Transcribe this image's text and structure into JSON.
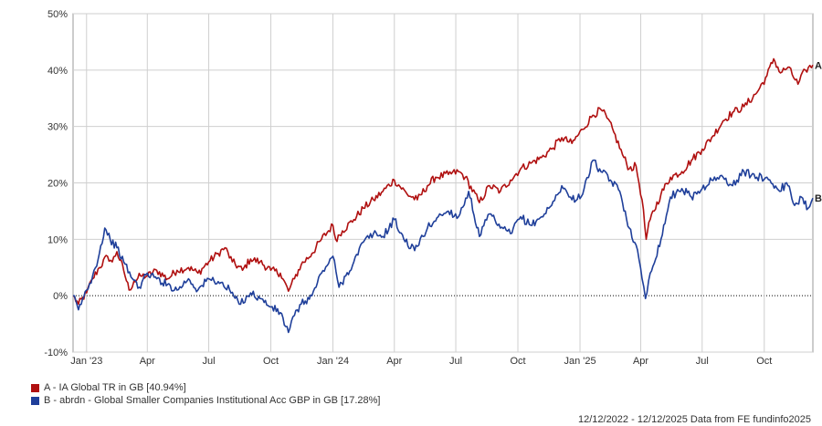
{
  "chart_data": {
    "type": "line",
    "xlim": [
      "2022-12-12",
      "2025-12-12"
    ],
    "ylim": [
      -10,
      50
    ],
    "y_ticks": [
      "-10%",
      "0%",
      "10%",
      "20%",
      "30%",
      "40%",
      "50%"
    ],
    "x_ticks": [
      {
        "label": "Jan '23",
        "date": "2023-01-01"
      },
      {
        "label": "Apr",
        "date": "2023-04-01"
      },
      {
        "label": "Jul",
        "date": "2023-07-01"
      },
      {
        "label": "Oct",
        "date": "2023-10-01"
      },
      {
        "label": "Jan '24",
        "date": "2024-01-01"
      },
      {
        "label": "Apr",
        "date": "2024-04-01"
      },
      {
        "label": "Jul",
        "date": "2024-07-01"
      },
      {
        "label": "Oct",
        "date": "2024-10-01"
      },
      {
        "label": "Jan '25",
        "date": "2025-01-01"
      },
      {
        "label": "Apr",
        "date": "2025-04-01"
      },
      {
        "label": "Jul",
        "date": "2025-07-01"
      },
      {
        "label": "Oct",
        "date": "2025-10-01"
      }
    ],
    "grid": true,
    "series": [
      {
        "name": "A - IA Global TR in GB [40.94%]",
        "end_label": "A",
        "color": "#b01010",
        "points": [
          [
            "2022-12-12",
            0.0
          ],
          [
            "2022-12-20",
            -1.5
          ],
          [
            "2023-01-01",
            0.5
          ],
          [
            "2023-01-10",
            3.0
          ],
          [
            "2023-01-20",
            5.0
          ],
          [
            "2023-02-01",
            7.0
          ],
          [
            "2023-02-08",
            6.0
          ],
          [
            "2023-02-15",
            7.8
          ],
          [
            "2023-02-25",
            4.5
          ],
          [
            "2023-03-05",
            1.0
          ],
          [
            "2023-03-12",
            2.5
          ],
          [
            "2023-03-22",
            3.5
          ],
          [
            "2023-04-01",
            3.5
          ],
          [
            "2023-04-15",
            4.5
          ],
          [
            "2023-05-01",
            3.0
          ],
          [
            "2023-05-15",
            4.5
          ],
          [
            "2023-06-01",
            5.0
          ],
          [
            "2023-06-15",
            4.0
          ],
          [
            "2023-07-01",
            6.0
          ],
          [
            "2023-07-15",
            7.5
          ],
          [
            "2023-07-25",
            8.5
          ],
          [
            "2023-08-05",
            6.0
          ],
          [
            "2023-08-20",
            4.5
          ],
          [
            "2023-09-01",
            6.5
          ],
          [
            "2023-09-15",
            6.0
          ],
          [
            "2023-10-01",
            4.5
          ],
          [
            "2023-10-15",
            4.0
          ],
          [
            "2023-10-27",
            0.8
          ],
          [
            "2023-11-05",
            3.0
          ],
          [
            "2023-11-15",
            5.5
          ],
          [
            "2023-12-01",
            7.5
          ],
          [
            "2023-12-15",
            10.0
          ],
          [
            "2024-01-01",
            12.5
          ],
          [
            "2024-01-05",
            10.0
          ],
          [
            "2024-01-15",
            11.5
          ],
          [
            "2024-02-01",
            13.5
          ],
          [
            "2024-02-15",
            15.5
          ],
          [
            "2024-03-01",
            17.0
          ],
          [
            "2024-03-15",
            18.5
          ],
          [
            "2024-04-01",
            20.5
          ],
          [
            "2024-04-20",
            18.0
          ],
          [
            "2024-05-05",
            17.0
          ],
          [
            "2024-05-20",
            19.5
          ],
          [
            "2024-06-01",
            21.0
          ],
          [
            "2024-06-20",
            21.5
          ],
          [
            "2024-07-05",
            22.0
          ],
          [
            "2024-07-15",
            21.0
          ],
          [
            "2024-08-05",
            16.5
          ],
          [
            "2024-08-20",
            19.5
          ],
          [
            "2024-09-05",
            18.5
          ],
          [
            "2024-09-20",
            20.5
          ],
          [
            "2024-10-05",
            22.5
          ],
          [
            "2024-10-20",
            23.5
          ],
          [
            "2024-11-05",
            24.5
          ],
          [
            "2024-11-20",
            26.0
          ],
          [
            "2024-12-05",
            28.0
          ],
          [
            "2024-12-20",
            27.0
          ],
          [
            "2025-01-05",
            29.5
          ],
          [
            "2025-01-20",
            32.0
          ],
          [
            "2025-02-01",
            33.0
          ],
          [
            "2025-02-10",
            31.5
          ],
          [
            "2025-02-20",
            29.0
          ],
          [
            "2025-03-05",
            25.0
          ],
          [
            "2025-03-15",
            22.5
          ],
          [
            "2025-03-25",
            23.0
          ],
          [
            "2025-04-03",
            17.0
          ],
          [
            "2025-04-09",
            10.0
          ],
          [
            "2025-04-15",
            13.5
          ],
          [
            "2025-05-01",
            18.0
          ],
          [
            "2025-05-15",
            21.0
          ],
          [
            "2025-06-01",
            22.0
          ],
          [
            "2025-06-15",
            24.0
          ],
          [
            "2025-07-01",
            26.0
          ],
          [
            "2025-07-15",
            28.0
          ],
          [
            "2025-08-01",
            31.0
          ],
          [
            "2025-08-15",
            32.5
          ],
          [
            "2025-09-01",
            33.5
          ],
          [
            "2025-09-20",
            36.0
          ],
          [
            "2025-10-05",
            39.0
          ],
          [
            "2025-10-15",
            42.0
          ],
          [
            "2025-10-25",
            39.5
          ],
          [
            "2025-11-05",
            40.5
          ],
          [
            "2025-11-20",
            37.5
          ],
          [
            "2025-12-01",
            40.0
          ],
          [
            "2025-12-12",
            40.9
          ]
        ]
      },
      {
        "name": "B - abrdn - Global Smaller Companies Institutional Acc GBP in GB [17.28%]",
        "end_label": "B",
        "color": "#1f3f9a",
        "points": [
          [
            "2022-12-12",
            0.0
          ],
          [
            "2022-12-20",
            -2.5
          ],
          [
            "2023-01-01",
            1.0
          ],
          [
            "2023-01-10",
            3.5
          ],
          [
            "2023-01-20",
            7.5
          ],
          [
            "2023-01-28",
            12.0
          ],
          [
            "2023-02-05",
            10.0
          ],
          [
            "2023-02-15",
            8.5
          ],
          [
            "2023-02-25",
            6.0
          ],
          [
            "2023-03-10",
            3.0
          ],
          [
            "2023-03-20",
            1.5
          ],
          [
            "2023-04-01",
            4.0
          ],
          [
            "2023-04-15",
            3.0
          ],
          [
            "2023-05-01",
            2.0
          ],
          [
            "2023-05-15",
            1.0
          ],
          [
            "2023-06-01",
            3.0
          ],
          [
            "2023-06-15",
            1.0
          ],
          [
            "2023-07-01",
            3.0
          ],
          [
            "2023-07-15",
            2.5
          ],
          [
            "2023-08-01",
            1.0
          ],
          [
            "2023-08-15",
            -1.5
          ],
          [
            "2023-09-01",
            0.5
          ],
          [
            "2023-09-15",
            -0.5
          ],
          [
            "2023-10-01",
            -2.0
          ],
          [
            "2023-10-15",
            -3.0
          ],
          [
            "2023-10-27",
            -6.5
          ],
          [
            "2023-11-05",
            -3.5
          ],
          [
            "2023-11-15",
            -1.5
          ],
          [
            "2023-12-01",
            0.0
          ],
          [
            "2023-12-15",
            4.0
          ],
          [
            "2024-01-01",
            7.0
          ],
          [
            "2024-01-10",
            1.5
          ],
          [
            "2024-01-20",
            3.5
          ],
          [
            "2024-02-01",
            6.0
          ],
          [
            "2024-02-15",
            9.5
          ],
          [
            "2024-03-01",
            11.0
          ],
          [
            "2024-03-15",
            10.5
          ],
          [
            "2024-04-01",
            13.5
          ],
          [
            "2024-04-15",
            10.0
          ],
          [
            "2024-05-01",
            8.0
          ],
          [
            "2024-05-20",
            12.0
          ],
          [
            "2024-06-05",
            14.0
          ],
          [
            "2024-06-20",
            15.0
          ],
          [
            "2024-07-05",
            14.0
          ],
          [
            "2024-07-20",
            18.5
          ],
          [
            "2024-08-05",
            10.5
          ],
          [
            "2024-08-20",
            14.5
          ],
          [
            "2024-09-05",
            12.0
          ],
          [
            "2024-09-20",
            11.0
          ],
          [
            "2024-10-05",
            14.0
          ],
          [
            "2024-10-20",
            12.5
          ],
          [
            "2024-11-05",
            14.0
          ],
          [
            "2024-11-20",
            16.0
          ],
          [
            "2024-12-05",
            19.5
          ],
          [
            "2024-12-20",
            17.0
          ],
          [
            "2025-01-05",
            18.0
          ],
          [
            "2025-01-20",
            24.0
          ],
          [
            "2025-02-01",
            22.0
          ],
          [
            "2025-02-15",
            20.5
          ],
          [
            "2025-03-01",
            18.5
          ],
          [
            "2025-03-15",
            12.0
          ],
          [
            "2025-03-25",
            9.0
          ],
          [
            "2025-04-03",
            3.0
          ],
          [
            "2025-04-08",
            -0.5
          ],
          [
            "2025-04-15",
            4.0
          ],
          [
            "2025-05-01",
            10.0
          ],
          [
            "2025-05-15",
            17.5
          ],
          [
            "2025-06-01",
            19.0
          ],
          [
            "2025-06-15",
            17.5
          ],
          [
            "2025-07-01",
            19.0
          ],
          [
            "2025-07-15",
            20.5
          ],
          [
            "2025-08-01",
            21.0
          ],
          [
            "2025-08-15",
            19.5
          ],
          [
            "2025-09-01",
            22.0
          ],
          [
            "2025-09-20",
            21.0
          ],
          [
            "2025-10-05",
            21.0
          ],
          [
            "2025-10-20",
            19.0
          ],
          [
            "2025-11-05",
            19.5
          ],
          [
            "2025-11-15",
            16.0
          ],
          [
            "2025-11-25",
            17.5
          ],
          [
            "2025-12-05",
            15.5
          ],
          [
            "2025-12-12",
            17.3
          ]
        ]
      }
    ],
    "footer": "12/12/2022 - 12/12/2025 Data from FE fundinfo2025"
  }
}
